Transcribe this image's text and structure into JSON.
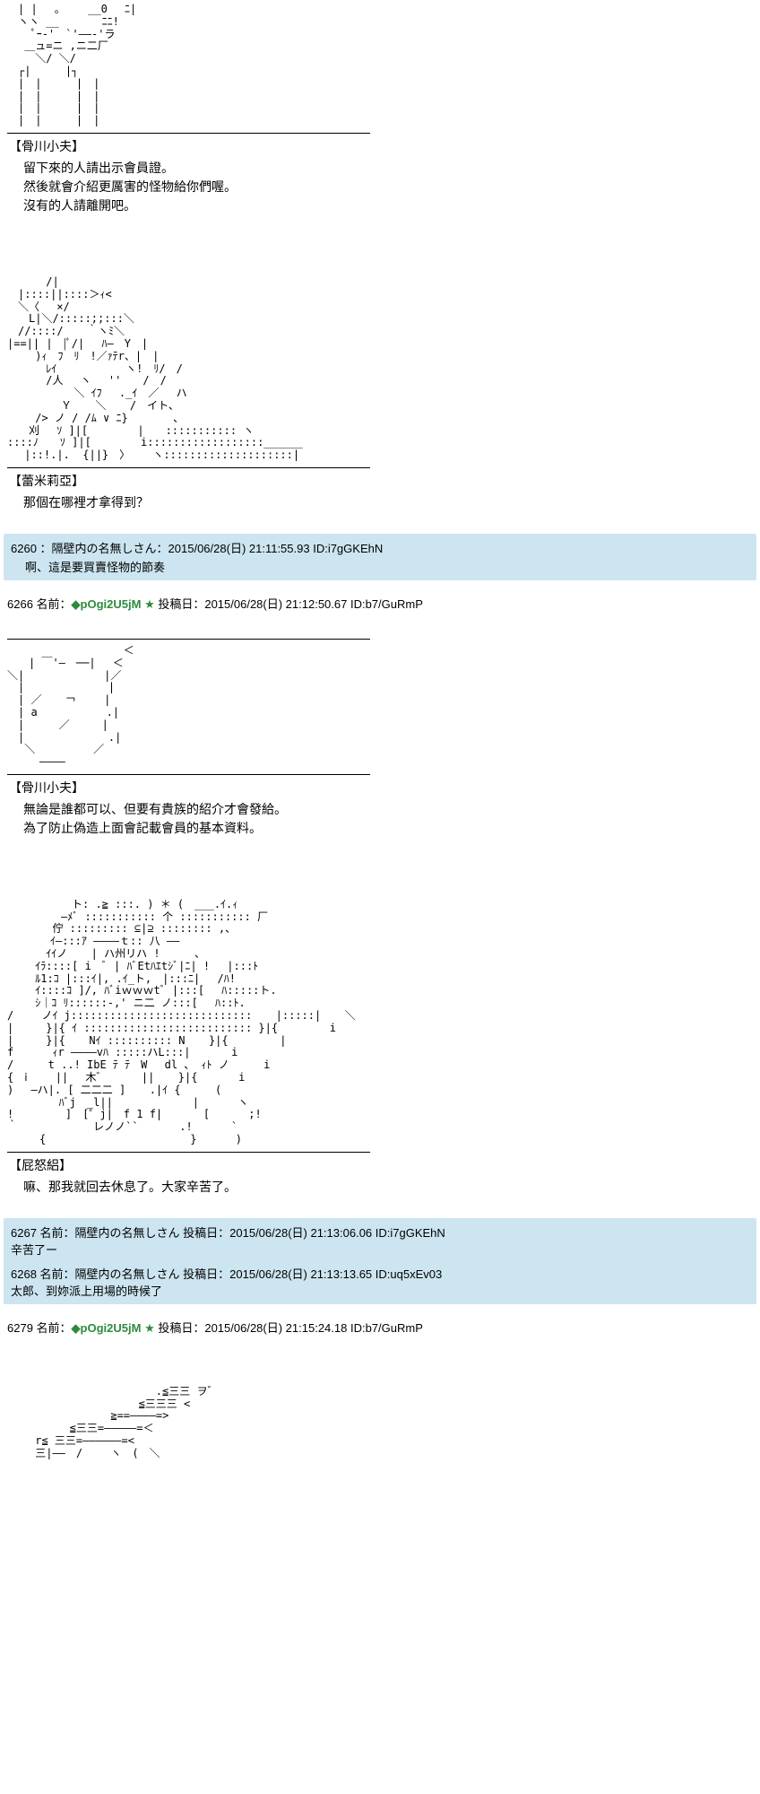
{
  "post1": {
    "ascii": "　| |　 ｡　　 __0　 ﾆ|\n　ヽヽ __　　　　ﾆﾆ!\n　　 ﾟｰ‐'　`'――‐'ラ\n　 ＿ュ=ニ ,ニ二厂\n　　 ＼/ ＼/\n　┌|　 　 |┐\n　|　|　 　 |　|\n　|　|　 　 |　|\n　|　|　 　 |　|\n　|　|　 　 |　|",
    "speaker": "【骨川小夫】",
    "dialogue": "留下來的人請出示會員證。\n然後就會介紹更厲害的怪物給你們喔。\n沒有的人請離開吧。"
  },
  "post2": {
    "ascii": "　　　 /|\n　|::::||::::＞ｨ<\n　＼〈　 ×/\n　　L|＼/:::::;;:::＼\n　//::::/ 　 ｀ヽﾐ＼\n|==|| |　|ﾟ/| 　ﾊ―　Y　|\n　　 )ｨ　ﾌ　ﾘ　!／ｧﾃr、|　|\n　　 　ﾚｲ 　 　 　 　ヽ!　ﾘ/　/\n　　　 /人　 ヽ 　''　　/　/\n　　　　 　 ＼ ｲﾌ 　._ｲ　／　 ハ\n　　　　　Ｙ 　 ＼ 　 /　イト、\n　　 /> ノ / /ﾑ ∨ ﾆ}　　 　 、\n　　刈　 ｿ ]|[ 　　　　|　　::::::::::: ヽ\n::::ﾉ　　ｿ ]|[　　　　 i::::::::::::::::::______\n　 |::!.|.  {||}　〉　 　ヽ::::::::::::::::::::|",
    "speaker": "【蕾米莉亞】",
    "dialogue": "那個在哪裡才拿得到？"
  },
  "comment1": {
    "number": "6260",
    "name": "：隔壁内の名無しさん：2015/06/28(日) 21:11:55.93 ID:i7gGKEhN",
    "body": "啊、這是要買賣怪物的節奏"
  },
  "post3_header": {
    "number": "6266 名前：",
    "trip": "◆pOgi2U5jM",
    "star": "★",
    "rest": " 投稿日：2015/06/28(日) 21:12:50.67 ID:b7/GuRmP"
  },
  "post3": {
    "ascii": "　　　　　　　 　 　 ＜\n　　| ￣'―　──|　 ＜\n＼|　　 　 　 　 |／\n　|　　　　 　 　 |\n　| ／ 　 ￢　 　|\n　| а 　 　 　　 .|\n　|　 　 ／　　　|\n　|　　　 　 　　 .|\n　 ＼ 　 　 　 ／\n　　　――――",
    "speaker": "【骨川小夫】",
    "dialogue": "無論是誰都可以、但要有貴族的紹介才會發給。\n為了防止偽造上面會記載會員的基本資料。"
  },
  "post4": {
    "ascii": "　　　　　　ト: .≧ :::. ) ＊ (　___.ｲ.ｨ\n　　　　　―ﾒﾞ ::::::::::: 个 ::::::::::: 厂\n　　 　 佇 ::::::::: ⊆|⊇ :::::::: ,、\n　　　　ｲ―:::ｱ ――――ｔ:: 八 ――\n　　　 ｲｲノ 　 | ハ州リハ !　 　 、\n　　 ｲﾗ::::[ i　ﾞ | ﾊﾞEtﾊｴtｼﾞ|ﾆ| !　 |:::ﾄ\n　　 ﾙ1:ｺ |:::ｲ|, .ｲ_ト,　|:::ﾆ| 　/ﾊ!\n　　 ｲ::::ｺ ]/, ﾊﾞiｗｗｗtﾞ |:::[ 　ﾊ:::::ト.\n　　 ｼ｜ｺ ﾘ::::::-,' ニ二 ノ:::[ 　ﾊ::ﾄ.\n/　　 ノｲ j:::::::::::::::::::::::::::: 　 |:::::| 　 ＼\n|　　　}|{ ｲ :::::::::::::::::::::::::: }|{　 　 　 i\n|　　　}|{ 　 Nｲ :::::::::: N 　 }|{　 　 　 |\nf　　　 ｨr ――――vﾊ :::::ハL:::| 　 　 i\n/ 　 　t ..! IbE ﾃ ﾃ　W　 dl 、 ｨﾄ ノ　 　 i\n{　ⅰ　 　||　 木゛ 　 　|| 　 }|{ 　 　 i\n)　 ―ハ|. [ 二二二 ] 　 .|ｲ {　 　 (\n　 　 　 ﾊﾞj　_l||　 　 　 　 　|　　　 ヽ\n!　 　 　 ]　[゜j|　f 1 f| 　 　 [　　　 ;!\n｀ 　 　 　 　 レノノ`` 　 　 .!　　　 `\n　　　{ 　 　 　 　 　 　 　 　 }　　　 )",
    "speaker": "【屁怒絽】",
    "dialogue": "嘛、那我就回去休息了。大家辛苦了。"
  },
  "comment2": {
    "item1_header": "6267 名前：隔壁内の名無しさん 投稿日：2015/06/28(日) 21:13:06.06 ID:i7gGKEhN",
    "item1_body": "辛苦了ー",
    "item2_header": "6268 名前：隔壁内の名無しさん 投稿日：2015/06/28(日) 21:13:13.65 ID:uq5xEv03",
    "item2_body": "太郎、到妳派上用場的時候了"
  },
  "post5_header": {
    "number": "6279 名前：",
    "trip": "◆pOgi2U5jM",
    "star": "★",
    "rest": " 投稿日：2015/06/28(日) 21:15:24.18 ID:b7/GuRmP"
  },
  "post5": {
    "ascii": "　　 　 　 　 　 　 　 　 .≦三三 ヲ゛\n　　 　 　 　 　 　 　 ≦三三三 <\n　 　 　 　 　 　 ≧==――――=>\n　　 　 　 ≦三三=―――――=＜\n　　 r≦ 三三=――――――=<\n　　 三|――　/　　 ヽ　(　＼"
  },
  "colors": {
    "comment_bg": "#cce5f0",
    "trip_color": "#2e8b3e",
    "text_color": "#000000",
    "bg_color": "#ffffff"
  }
}
